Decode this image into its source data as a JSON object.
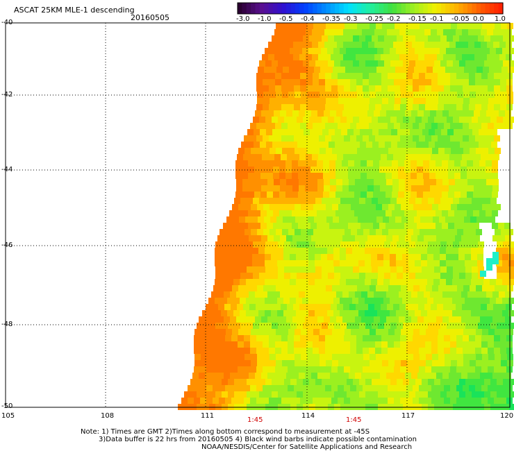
{
  "header": {
    "title": "ASCAT 25KM MLE-1 descending",
    "date": "20160505"
  },
  "colorbar": {
    "colors": [
      "#2a0030",
      "#5a1090",
      "#3010d0",
      "#0040ff",
      "#0090ff",
      "#00e0ff",
      "#20f0a0",
      "#40e040",
      "#a0f020",
      "#f0f000",
      "#ffb000",
      "#ff6000",
      "#ff2000"
    ],
    "labels": [
      "-3.0",
      "-1.0",
      "-0.5",
      "-0.4",
      "-0.35",
      "-0.3",
      "-0.25",
      "-0.2",
      "-0.15",
      "-0.1",
      "-0.05",
      "0.0",
      "1.0"
    ]
  },
  "axes": {
    "lat_labels": [
      "-40",
      "-42",
      "-44",
      "-46",
      "-48",
      "-50"
    ],
    "lon_labels": [
      "105",
      "108",
      "111",
      "114",
      "117",
      "120"
    ]
  },
  "times": [
    "1:45",
    "1:45"
  ],
  "notes": {
    "line1": "Note: 1) Times are GMT 2)Times along bottom correspond to measurement at -45S",
    "line2": "3)Data buffer is 22 hrs from 20160505 4) Black wind barbs indicate possible contamination",
    "line3": "NOAA/NESDIS/Center for Satellite Applications and Research"
  }
}
